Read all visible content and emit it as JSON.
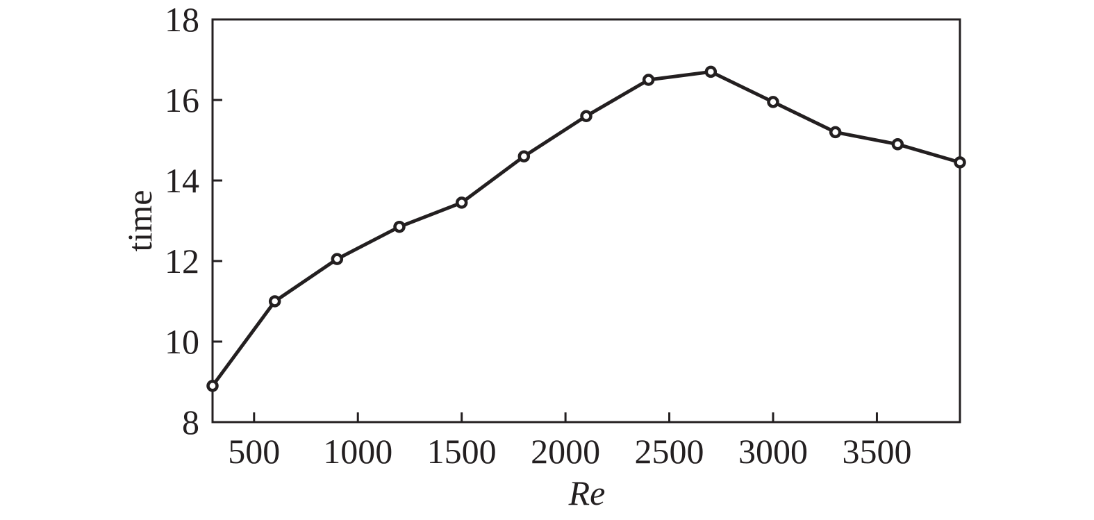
{
  "chart_data": {
    "type": "line",
    "title": "",
    "xlabel": "Re",
    "ylabel": "time",
    "xlim": [
      300,
      3900
    ],
    "ylim": [
      8,
      18
    ],
    "xticks": [
      500,
      1000,
      1500,
      2000,
      2500,
      3000,
      3500
    ],
    "yticks": [
      8,
      10,
      12,
      14,
      16,
      18
    ],
    "grid": false,
    "legend": null,
    "series": [
      {
        "name": "time",
        "marker": "open-circle",
        "color": "#231f20",
        "x": [
          300,
          600,
          900,
          1200,
          1500,
          1800,
          2100,
          2400,
          2700,
          3000,
          3300,
          3600,
          3900
        ],
        "values": [
          8.9,
          11.0,
          12.05,
          12.85,
          13.45,
          14.6,
          15.6,
          16.5,
          16.7,
          15.95,
          15.2,
          14.9,
          14.45
        ]
      }
    ]
  },
  "colors": {
    "ink": "#231f20",
    "background": "#ffffff"
  }
}
